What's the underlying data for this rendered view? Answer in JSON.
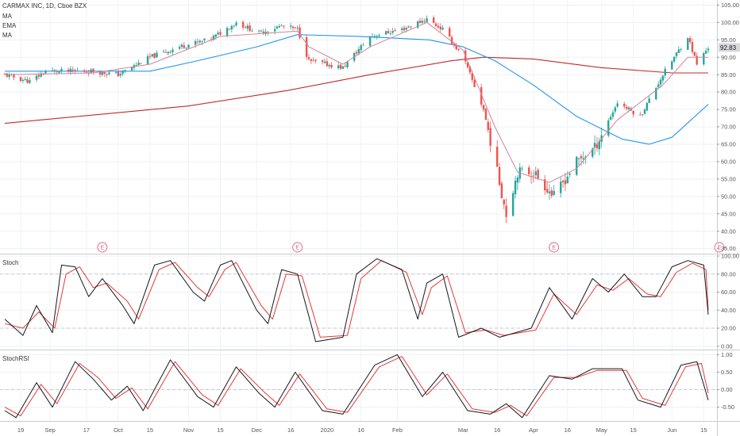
{
  "header": {
    "symbol": "CARMAX INC, 1D, Cboe BZX",
    "studies": [
      "MA",
      "EMA",
      "MA"
    ]
  },
  "panes": {
    "stoch_label": "Stoch",
    "stochrsi_label": "StochRSI"
  },
  "last_price": "92.83",
  "colors": {
    "up": "#26a69a",
    "down": "#ef5350",
    "ema": "#d0859a",
    "ma_fast": "#2196f3",
    "ma_slow": "#c62828",
    "k": "#131722",
    "d": "#e53935",
    "earnings": "#e2607a",
    "grid": "#d1d4dc",
    "last_price_bg": "#d9d9d9"
  },
  "x_ticks": [
    "19",
    "Sep",
    "17",
    "Oct",
    "15",
    "Nov",
    "15",
    "Dec",
    "16",
    "2020",
    "16",
    "Feb",
    "Mar",
    "16",
    "Apr",
    "16",
    "May",
    "15",
    "Jun",
    "15"
  ],
  "earnings_marker": "E",
  "chart_data": [
    {
      "type": "candlestick",
      "title": "",
      "y_ticks": [
        "105.00",
        "100.00",
        "95.00",
        "90.00",
        "85.00",
        "80.00",
        "75.00",
        "70.00",
        "65.00",
        "60.00",
        "55.00",
        "50.00",
        "45.00",
        "40.00",
        "35.00"
      ],
      "ylim": [
        34,
        106
      ],
      "x_range": [
        "2019-08-12",
        "2020-06-17"
      ],
      "last_price": 92.83,
      "earnings_dates": [
        "2019-09-24",
        "2019-12-19",
        "2020-04-10",
        "2020-06-22"
      ],
      "anchors": [
        [
          "2019-08-12",
          85
        ],
        [
          "2019-08-23",
          83
        ],
        [
          "2019-08-30",
          86
        ],
        [
          "2019-09-12",
          86
        ],
        [
          "2019-09-20",
          86
        ],
        [
          "2019-10-01",
          85
        ],
        [
          "2019-10-15",
          90
        ],
        [
          "2019-10-28",
          93
        ],
        [
          "2019-11-10",
          95
        ],
        [
          "2019-11-15",
          97
        ],
        [
          "2019-11-22",
          100
        ],
        [
          "2019-12-02",
          97
        ],
        [
          "2019-12-12",
          99
        ],
        [
          "2019-12-19",
          98
        ],
        [
          "2019-12-24",
          89
        ],
        [
          "2020-01-08",
          87
        ],
        [
          "2020-01-20",
          96
        ],
        [
          "2020-02-03",
          98
        ],
        [
          "2020-02-14",
          101
        ],
        [
          "2020-02-21",
          98
        ],
        [
          "2020-03-01",
          90
        ],
        [
          "2020-03-10",
          75
        ],
        [
          "2020-03-20",
          45
        ],
        [
          "2020-03-25",
          57
        ],
        [
          "2020-04-01",
          57
        ],
        [
          "2020-04-10",
          50
        ],
        [
          "2020-04-20",
          60
        ],
        [
          "2020-04-28",
          64
        ],
        [
          "2020-05-08",
          77
        ],
        [
          "2020-05-18",
          73
        ],
        [
          "2020-05-28",
          85
        ],
        [
          "2020-06-08",
          96
        ],
        [
          "2020-06-12",
          88
        ],
        [
          "2020-06-17",
          92.83
        ]
      ],
      "ema": [
        [
          "2019-08-12",
          85
        ],
        [
          "2019-09-20",
          85.5
        ],
        [
          "2019-10-15",
          88
        ],
        [
          "2019-11-15",
          96
        ],
        [
          "2019-12-19",
          97.5
        ],
        [
          "2019-12-24",
          93
        ],
        [
          "2020-01-08",
          88
        ],
        [
          "2020-01-20",
          93
        ],
        [
          "2020-02-14",
          100
        ],
        [
          "2020-03-01",
          92
        ],
        [
          "2020-03-15",
          70
        ],
        [
          "2020-03-25",
          57
        ],
        [
          "2020-04-08",
          54
        ],
        [
          "2020-04-20",
          58
        ],
        [
          "2020-05-08",
          72
        ],
        [
          "2020-05-28",
          82
        ],
        [
          "2020-06-08",
          90
        ],
        [
          "2020-06-17",
          90
        ]
      ],
      "ma_fast": [
        [
          "2019-08-12",
          86
        ],
        [
          "2019-09-15",
          86
        ],
        [
          "2019-10-15",
          86
        ],
        [
          "2019-11-05",
          89
        ],
        [
          "2019-12-01",
          93
        ],
        [
          "2019-12-19",
          96.5
        ],
        [
          "2020-01-15",
          96
        ],
        [
          "2020-02-15",
          95
        ],
        [
          "2020-03-01",
          93
        ],
        [
          "2020-03-15",
          89
        ],
        [
          "2020-04-01",
          82
        ],
        [
          "2020-04-20",
          73
        ],
        [
          "2020-05-10",
          66.5
        ],
        [
          "2020-05-22",
          65
        ],
        [
          "2020-06-01",
          67
        ],
        [
          "2020-06-17",
          76.5
        ]
      ],
      "ma_slow": [
        [
          "2019-08-12",
          71
        ],
        [
          "2019-11-01",
          76
        ],
        [
          "2019-12-15",
          80.5
        ],
        [
          "2020-01-20",
          85
        ],
        [
          "2020-02-25",
          89
        ],
        [
          "2020-03-10",
          90
        ],
        [
          "2020-04-01",
          89.5
        ],
        [
          "2020-05-01",
          87
        ],
        [
          "2020-06-01",
          85.5
        ],
        [
          "2020-06-17",
          85.5
        ]
      ]
    },
    {
      "type": "line",
      "title": "Stoch",
      "y_ticks": [
        "100.00",
        "80.00",
        "60.00",
        "40.00",
        "20.00",
        "0.00"
      ],
      "ylim": [
        -2,
        100
      ],
      "series": [
        {
          "values": [
            [
              "2019-08-12",
              30
            ],
            [
              "2019-08-20",
              12
            ],
            [
              "2019-08-26",
              45
            ],
            [
              "2019-09-02",
              15
            ],
            [
              "2019-09-06",
              90
            ],
            [
              "2019-09-12",
              88
            ],
            [
              "2019-09-18",
              55
            ],
            [
              "2019-09-24",
              75
            ],
            [
              "2019-10-03",
              45
            ],
            [
              "2019-10-08",
              25
            ],
            [
              "2019-10-17",
              90
            ],
            [
              "2019-10-24",
              95
            ],
            [
              "2019-11-03",
              60
            ],
            [
              "2019-11-08",
              50
            ],
            [
              "2019-11-15",
              90
            ],
            [
              "2019-11-20",
              95
            ],
            [
              "2019-12-01",
              40
            ],
            [
              "2019-12-06",
              25
            ],
            [
              "2019-12-12",
              85
            ],
            [
              "2019-12-19",
              80
            ],
            [
              "2019-12-27",
              5
            ],
            [
              "2020-01-08",
              10
            ],
            [
              "2020-01-14",
              80
            ],
            [
              "2020-01-23",
              97
            ],
            [
              "2020-02-03",
              85
            ],
            [
              "2020-02-10",
              30
            ],
            [
              "2020-02-14",
              70
            ],
            [
              "2020-02-21",
              80
            ],
            [
              "2020-02-28",
              10
            ],
            [
              "2020-03-09",
              20
            ],
            [
              "2020-03-17",
              10
            ],
            [
              "2020-03-31",
              20
            ],
            [
              "2020-04-08",
              65
            ],
            [
              "2020-04-18",
              30
            ],
            [
              "2020-04-27",
              75
            ],
            [
              "2020-05-04",
              60
            ],
            [
              "2020-05-11",
              80
            ],
            [
              "2020-05-19",
              55
            ],
            [
              "2020-05-25",
              55
            ],
            [
              "2020-06-01",
              88
            ],
            [
              "2020-06-08",
              95
            ],
            [
              "2020-06-15",
              90
            ],
            [
              "2020-06-17",
              35
            ]
          ]
        },
        {
          "values": [
            [
              "2019-08-12",
              25
            ],
            [
              "2019-08-20",
              20
            ],
            [
              "2019-08-27",
              38
            ],
            [
              "2019-09-03",
              20
            ],
            [
              "2019-09-08",
              80
            ],
            [
              "2019-09-14",
              88
            ],
            [
              "2019-09-20",
              65
            ],
            [
              "2019-09-26",
              70
            ],
            [
              "2019-10-05",
              50
            ],
            [
              "2019-10-10",
              30
            ],
            [
              "2019-10-19",
              85
            ],
            [
              "2019-10-26",
              93
            ],
            [
              "2019-11-05",
              65
            ],
            [
              "2019-11-10",
              55
            ],
            [
              "2019-11-17",
              85
            ],
            [
              "2019-11-22",
              93
            ],
            [
              "2019-12-03",
              45
            ],
            [
              "2019-12-08",
              30
            ],
            [
              "2019-12-14",
              80
            ],
            [
              "2019-12-21",
              78
            ],
            [
              "2019-12-29",
              10
            ],
            [
              "2020-01-10",
              12
            ],
            [
              "2020-01-16",
              75
            ],
            [
              "2020-01-25",
              95
            ],
            [
              "2020-02-05",
              82
            ],
            [
              "2020-02-12",
              35
            ],
            [
              "2020-02-16",
              65
            ],
            [
              "2020-02-23",
              78
            ],
            [
              "2020-03-02",
              15
            ],
            [
              "2020-03-11",
              18
            ],
            [
              "2020-03-19",
              12
            ],
            [
              "2020-04-02",
              18
            ],
            [
              "2020-04-10",
              58
            ],
            [
              "2020-04-20",
              35
            ],
            [
              "2020-04-29",
              68
            ],
            [
              "2020-05-06",
              62
            ],
            [
              "2020-05-13",
              75
            ],
            [
              "2020-05-21",
              58
            ],
            [
              "2020-05-27",
              55
            ],
            [
              "2020-06-03",
              82
            ],
            [
              "2020-06-10",
              92
            ],
            [
              "2020-06-16",
              85
            ],
            [
              "2020-06-17",
              40
            ]
          ]
        }
      ]
    },
    {
      "type": "line",
      "title": "StochRSI",
      "y_ticks": [
        "1.00",
        "0.50",
        "0.00",
        "-0.50"
      ],
      "ylim": [
        -0.85,
        1.1
      ],
      "series": [
        {
          "values": [
            [
              "2019-08-12",
              -0.6
            ],
            [
              "2019-08-17",
              -0.8
            ],
            [
              "2019-08-26",
              0.2
            ],
            [
              "2019-09-02",
              -0.5
            ],
            [
              "2019-09-12",
              0.8
            ],
            [
              "2019-09-20",
              0.3
            ],
            [
              "2019-09-28",
              -0.3
            ],
            [
              "2019-10-05",
              0.1
            ],
            [
              "2019-10-12",
              -0.6
            ],
            [
              "2019-10-24",
              0.85
            ],
            [
              "2019-11-05",
              -0.2
            ],
            [
              "2019-11-12",
              -0.5
            ],
            [
              "2019-11-22",
              0.65
            ],
            [
              "2019-12-02",
              -0.1
            ],
            [
              "2019-12-09",
              -0.5
            ],
            [
              "2019-12-18",
              0.5
            ],
            [
              "2019-12-30",
              -0.6
            ],
            [
              "2020-01-08",
              -0.7
            ],
            [
              "2020-01-22",
              0.7
            ],
            [
              "2020-02-01",
              1.0
            ],
            [
              "2020-02-12",
              -0.2
            ],
            [
              "2020-02-21",
              0.5
            ],
            [
              "2020-03-03",
              -0.6
            ],
            [
              "2020-03-13",
              -0.7
            ],
            [
              "2020-03-20",
              -0.4
            ],
            [
              "2020-03-27",
              -0.8
            ],
            [
              "2020-04-08",
              0.4
            ],
            [
              "2020-04-18",
              0.3
            ],
            [
              "2020-04-27",
              0.6
            ],
            [
              "2020-05-10",
              0.6
            ],
            [
              "2020-05-17",
              -0.3
            ],
            [
              "2020-05-27",
              -0.5
            ],
            [
              "2020-06-05",
              0.7
            ],
            [
              "2020-06-12",
              0.8
            ],
            [
              "2020-06-17",
              -0.3
            ]
          ]
        },
        {
          "values": [
            [
              "2019-08-12",
              -0.5
            ],
            [
              "2019-08-19",
              -0.75
            ],
            [
              "2019-08-28",
              0.15
            ],
            [
              "2019-09-04",
              -0.4
            ],
            [
              "2019-09-14",
              0.75
            ],
            [
              "2019-09-22",
              0.35
            ],
            [
              "2019-09-30",
              -0.25
            ],
            [
              "2019-10-07",
              0.05
            ],
            [
              "2019-10-14",
              -0.55
            ],
            [
              "2019-10-26",
              0.8
            ],
            [
              "2019-11-07",
              -0.15
            ],
            [
              "2019-11-14",
              -0.45
            ],
            [
              "2019-11-24",
              0.6
            ],
            [
              "2019-12-04",
              -0.05
            ],
            [
              "2019-12-11",
              -0.45
            ],
            [
              "2019-12-20",
              0.45
            ],
            [
              "2020-01-01",
              -0.55
            ],
            [
              "2020-01-10",
              -0.65
            ],
            [
              "2020-01-24",
              0.65
            ],
            [
              "2020-02-03",
              0.95
            ],
            [
              "2020-02-14",
              -0.15
            ],
            [
              "2020-02-23",
              0.45
            ],
            [
              "2020-03-05",
              -0.55
            ],
            [
              "2020-03-15",
              -0.65
            ],
            [
              "2020-03-22",
              -0.45
            ],
            [
              "2020-03-29",
              -0.75
            ],
            [
              "2020-04-10",
              0.35
            ],
            [
              "2020-04-20",
              0.35
            ],
            [
              "2020-04-29",
              0.55
            ],
            [
              "2020-05-12",
              0.55
            ],
            [
              "2020-05-19",
              -0.25
            ],
            [
              "2020-05-29",
              -0.45
            ],
            [
              "2020-06-07",
              0.65
            ],
            [
              "2020-06-14",
              0.75
            ],
            [
              "2020-06-17",
              -0.1
            ]
          ]
        }
      ]
    }
  ]
}
